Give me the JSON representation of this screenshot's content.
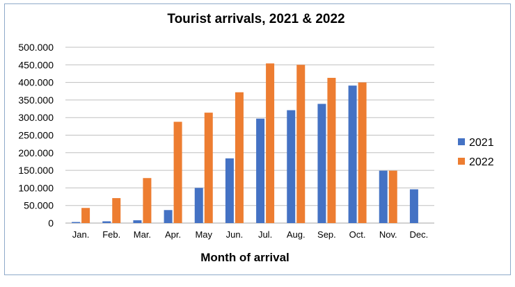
{
  "chart_data": {
    "type": "bar",
    "title": "Tourist arrivals, 2021 & 2022",
    "xlabel": "Month of arrival",
    "ylabel": "",
    "categories": [
      "Jan.",
      "Feb.",
      "Mar.",
      "Apr.",
      "May",
      "Jun.",
      "Jul.",
      "Aug.",
      "Sep.",
      "Oct.",
      "Nov.",
      "Dec."
    ],
    "series": [
      {
        "name": "2021",
        "color": "#4472C4",
        "values": [
          3000,
          5000,
          8000,
          37000,
          100000,
          184000,
          297000,
          321000,
          339000,
          391000,
          149000,
          96000
        ]
      },
      {
        "name": "2022",
        "color": "#ED7D31",
        "values": [
          43000,
          71000,
          128000,
          288000,
          314000,
          372000,
          454000,
          450000,
          413000,
          400000,
          149000,
          null
        ]
      }
    ],
    "ylim": [
      0,
      500000
    ],
    "yticks": [
      "0",
      "50.000",
      "100.000",
      "150.000",
      "200.000",
      "250.000",
      "300.000",
      "350.000",
      "400.000",
      "450.000",
      "500.000"
    ],
    "grid": true,
    "legend": "right",
    "colors": {
      "border": "#8EA9C9",
      "grid": "#BFBFBF"
    }
  }
}
